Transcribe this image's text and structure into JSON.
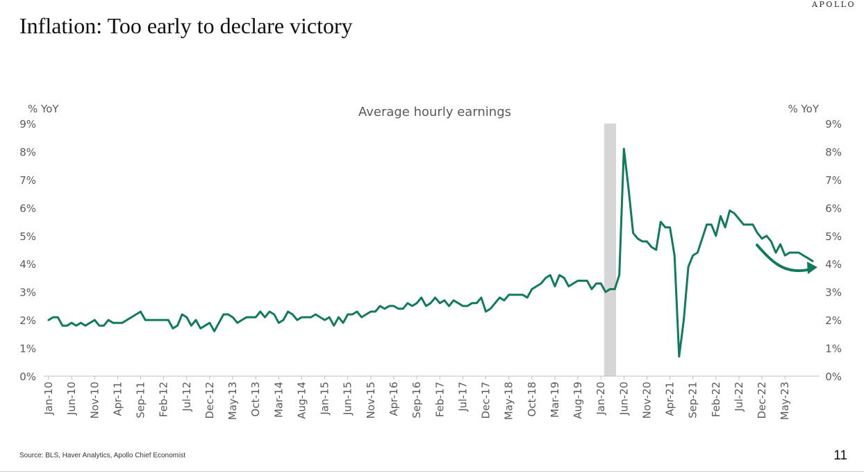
{
  "brand": "APOLLO",
  "slide_title": "Inflation: Too early to declare victory",
  "source": "Source: BLS, Haver Analytics, Apollo Chief Economist",
  "page_number": "11",
  "colors": {
    "series": "#0f7a5c",
    "recession": "#d6d6d6",
    "text": "#595959",
    "axis": "#bfbfbf"
  },
  "chart_data": {
    "type": "line",
    "title": "Average hourly earnings",
    "ylabel_left": "% YoY",
    "ylabel_right": "% YoY",
    "ylim": [
      0,
      9
    ],
    "yticks": [
      0,
      1,
      2,
      3,
      4,
      5,
      6,
      7,
      8,
      9
    ],
    "ytick_labels": [
      "0%",
      "1%",
      "2%",
      "3%",
      "4%",
      "5%",
      "6%",
      "7%",
      "8%",
      "9%"
    ],
    "x_start": "Jan-10",
    "x_end": "Nov-23",
    "xtick_labels": [
      "Jan-10",
      "Jun-10",
      "Nov-10",
      "Apr-11",
      "Sep-11",
      "Feb-12",
      "Jul-12",
      "Dec-12",
      "May-13",
      "Oct-13",
      "Mar-14",
      "Aug-14",
      "Jan-15",
      "Jun-15",
      "Nov-15",
      "Apr-16",
      "Sep-16",
      "Feb-17",
      "Jul-17",
      "Dec-17",
      "May-18",
      "Oct-18",
      "Mar-19",
      "Aug-19",
      "Jan-20",
      "Jun-20",
      "Nov-20",
      "Apr-21",
      "Sep-21",
      "Feb-22",
      "Jul-22",
      "Dec-22",
      "May-23"
    ],
    "shaded_period": {
      "start": "Feb-20",
      "end": "Apr-20"
    },
    "annotation": "downward-trend-arrow",
    "grid": false,
    "legend": "none",
    "series": [
      {
        "values": [
          2.0,
          2.1,
          2.1,
          1.8,
          1.8,
          1.9,
          1.8,
          1.9,
          1.8,
          1.9,
          2.0,
          1.8,
          1.8,
          2.0,
          1.9,
          1.9,
          1.9,
          2.0,
          2.1,
          2.2,
          2.3,
          2.0,
          2.0,
          2.0,
          2.0,
          2.0,
          2.0,
          1.7,
          1.8,
          2.2,
          2.1,
          1.8,
          2.0,
          1.7,
          1.8,
          1.9,
          1.6,
          1.9,
          2.2,
          2.2,
          2.1,
          1.9,
          2.0,
          2.1,
          2.1,
          2.1,
          2.3,
          2.1,
          2.3,
          2.2,
          1.9,
          2.0,
          2.3,
          2.2,
          2.0,
          2.1,
          2.1,
          2.1,
          2.2,
          2.1,
          2.0,
          2.1,
          1.8,
          2.1,
          1.9,
          2.2,
          2.2,
          2.3,
          2.1,
          2.2,
          2.3,
          2.3,
          2.5,
          2.4,
          2.5,
          2.5,
          2.4,
          2.4,
          2.6,
          2.5,
          2.6,
          2.8,
          2.5,
          2.6,
          2.8,
          2.6,
          2.7,
          2.5,
          2.7,
          2.6,
          2.5,
          2.5,
          2.6,
          2.6,
          2.8,
          2.3,
          2.4,
          2.6,
          2.8,
          2.7,
          2.9,
          2.9,
          2.9,
          2.9,
          2.8,
          3.1,
          3.2,
          3.3,
          3.5,
          3.6,
          3.2,
          3.6,
          3.5,
          3.2,
          3.3,
          3.4,
          3.4,
          3.4,
          3.1,
          3.3,
          3.3,
          3.0,
          3.1,
          3.1,
          3.6,
          8.1,
          6.7,
          5.1,
          4.9,
          4.8,
          4.8,
          4.6,
          4.5,
          5.5,
          5.3,
          5.3,
          4.3,
          0.7,
          2.0,
          3.9,
          4.3,
          4.4,
          4.9,
          5.4,
          5.4,
          5.0,
          5.7,
          5.3,
          5.9,
          5.8,
          5.6,
          5.4,
          5.4,
          5.4,
          5.1,
          4.9,
          5.0,
          4.8,
          4.4,
          4.7,
          4.3,
          4.4,
          4.4,
          4.4,
          4.3,
          4.2,
          4.1
        ]
      }
    ]
  }
}
